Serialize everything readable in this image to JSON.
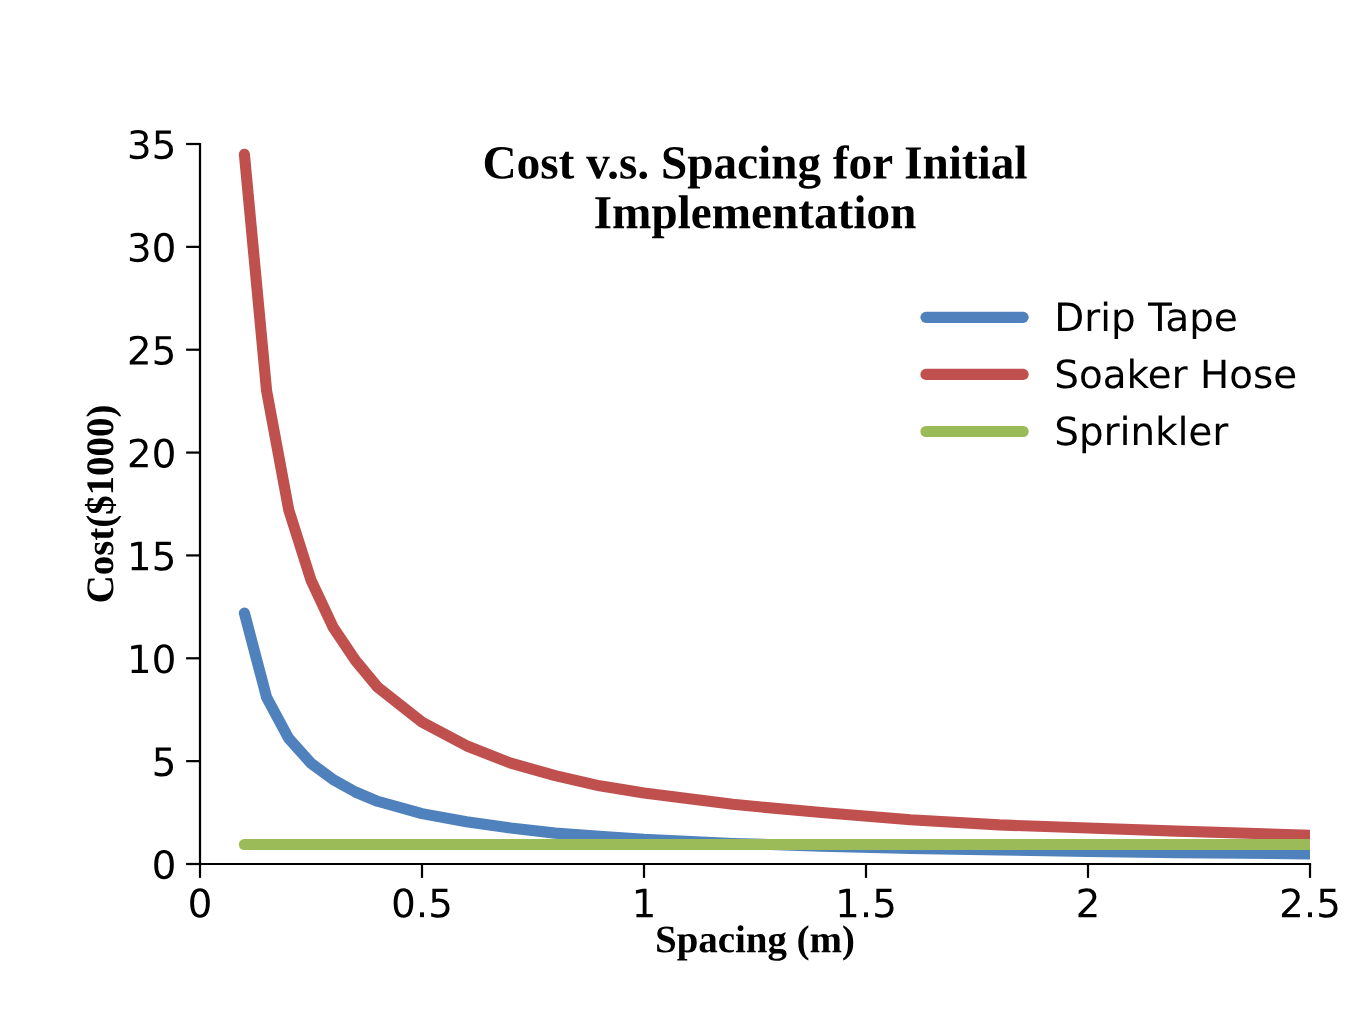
{
  "chart_data": {
    "type": "line",
    "title": "Cost v.s. Spacing for Initial\nImplementation",
    "xlabel": "Spacing (m)",
    "ylabel": "Cost($1000)",
    "x": [
      0.1,
      0.15,
      0.2,
      0.25,
      0.3,
      0.35,
      0.4,
      0.5,
      0.6,
      0.7,
      0.8,
      0.9,
      1.0,
      1.2,
      1.4,
      1.6,
      1.8,
      2.0,
      2.2,
      2.5
    ],
    "series": [
      {
        "name": "Drip Tape",
        "color": "#4f81bd",
        "values": [
          12.2,
          8.1,
          6.1,
          4.9,
          4.1,
          3.5,
          3.05,
          2.45,
          2.05,
          1.75,
          1.5,
          1.35,
          1.2,
          1.0,
          0.87,
          0.76,
          0.68,
          0.61,
          0.55,
          0.49
        ]
      },
      {
        "name": "Soaker Hose",
        "color": "#c0504d",
        "values": [
          34.5,
          23,
          17.2,
          13.8,
          11.5,
          9.9,
          8.6,
          6.9,
          5.75,
          4.9,
          4.3,
          3.8,
          3.45,
          2.9,
          2.5,
          2.15,
          1.9,
          1.75,
          1.6,
          1.4
        ]
      },
      {
        "name": "Sprinkler",
        "color": "#9bbb59",
        "values": [
          0.95,
          0.95,
          0.95,
          0.95,
          0.95,
          0.95,
          0.95,
          0.95,
          0.95,
          0.95,
          0.95,
          0.95,
          0.95,
          0.95,
          0.95,
          0.95,
          0.95,
          0.95,
          0.95,
          0.95
        ]
      }
    ],
    "xlim": [
      0,
      2.5
    ],
    "xticks": [
      0,
      0.5,
      1,
      1.5,
      2,
      2.5
    ],
    "ylim": [
      0,
      35
    ],
    "yticks": [
      0,
      5,
      10,
      15,
      20,
      25,
      30,
      35
    ],
    "legend": "top right",
    "grid": false,
    "marker": "none",
    "line_style": "solid"
  }
}
